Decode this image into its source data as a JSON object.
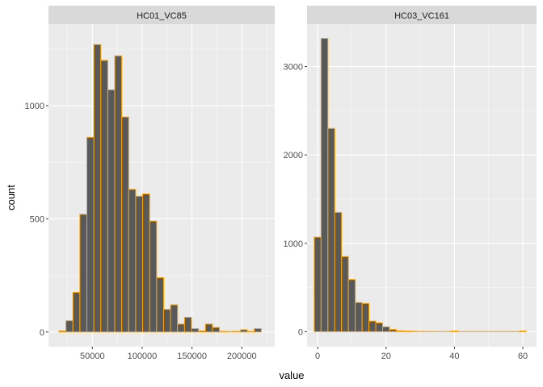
{
  "chart_data": {
    "type": "bar",
    "kind": "faceted histogram",
    "xlabel": "value",
    "ylabel": "count",
    "colors": {
      "panel_background": "#ebebeb",
      "grid_major": "#ffffff",
      "strip_background": "#d9d9d9",
      "bar_fill": "#595959",
      "bar_outline": "#ffa500"
    },
    "grid": true,
    "facets": [
      {
        "name": "HC01_VC85",
        "xlim": [
          6000,
          233000
        ],
        "ylim": [
          -65,
          1360
        ],
        "x_ticks": [
          50000,
          100000,
          150000,
          200000
        ],
        "x_tick_labels": [
          "50000",
          "100000",
          "150000",
          "200000"
        ],
        "y_ticks": [
          0,
          500,
          1000
        ],
        "y_tick_labels": [
          "0",
          "500",
          "1000"
        ],
        "bins": [
          {
            "x": 20000,
            "count": 5
          },
          {
            "x": 27000,
            "count": 50
          },
          {
            "x": 34000,
            "count": 175
          },
          {
            "x": 41000,
            "count": 520
          },
          {
            "x": 48000,
            "count": 860
          },
          {
            "x": 55000,
            "count": 1270
          },
          {
            "x": 62000,
            "count": 1200
          },
          {
            "x": 69000,
            "count": 1070
          },
          {
            "x": 76000,
            "count": 1220
          },
          {
            "x": 83000,
            "count": 950
          },
          {
            "x": 90000,
            "count": 630
          },
          {
            "x": 97000,
            "count": 600
          },
          {
            "x": 104000,
            "count": 610
          },
          {
            "x": 111000,
            "count": 490
          },
          {
            "x": 118000,
            "count": 240
          },
          {
            "x": 125000,
            "count": 100
          },
          {
            "x": 132000,
            "count": 120
          },
          {
            "x": 139000,
            "count": 35
          },
          {
            "x": 146000,
            "count": 65
          },
          {
            "x": 153000,
            "count": 15
          },
          {
            "x": 160000,
            "count": 5
          },
          {
            "x": 167000,
            "count": 35
          },
          {
            "x": 174000,
            "count": 20
          },
          {
            "x": 181000,
            "count": 3
          },
          {
            "x": 188000,
            "count": 2
          },
          {
            "x": 195000,
            "count": 3
          },
          {
            "x": 202000,
            "count": 10
          },
          {
            "x": 209000,
            "count": 3
          },
          {
            "x": 216000,
            "count": 15
          }
        ],
        "binwidth": 7000
      },
      {
        "name": "HC03_VC161",
        "xlim": [
          -3.1,
          64
        ],
        "ylim": [
          -170,
          3480
        ],
        "x_ticks": [
          0,
          20,
          40,
          60
        ],
        "x_tick_labels": [
          "0",
          "20",
          "40",
          "60"
        ],
        "y_ticks": [
          0,
          1000,
          2000,
          3000
        ],
        "y_tick_labels": [
          "0",
          "1000",
          "2000",
          "3000"
        ],
        "bins": [
          {
            "x": 0,
            "count": 1070
          },
          {
            "x": 2,
            "count": 3320
          },
          {
            "x": 4,
            "count": 2300
          },
          {
            "x": 6,
            "count": 1350
          },
          {
            "x": 8,
            "count": 850
          },
          {
            "x": 10,
            "count": 590
          },
          {
            "x": 12,
            "count": 330
          },
          {
            "x": 14,
            "count": 320
          },
          {
            "x": 16,
            "count": 120
          },
          {
            "x": 18,
            "count": 100
          },
          {
            "x": 20,
            "count": 55
          },
          {
            "x": 22,
            "count": 25
          },
          {
            "x": 24,
            "count": 10
          },
          {
            "x": 26,
            "count": 8
          },
          {
            "x": 28,
            "count": 5
          },
          {
            "x": 30,
            "count": 3
          },
          {
            "x": 32,
            "count": 2
          },
          {
            "x": 34,
            "count": 2
          },
          {
            "x": 36,
            "count": 1
          },
          {
            "x": 38,
            "count": 2
          },
          {
            "x": 40,
            "count": 8
          },
          {
            "x": 42,
            "count": 1
          },
          {
            "x": 44,
            "count": 1
          },
          {
            "x": 46,
            "count": 1
          },
          {
            "x": 48,
            "count": 1
          },
          {
            "x": 50,
            "count": 1
          },
          {
            "x": 52,
            "count": 1
          },
          {
            "x": 54,
            "count": 1
          },
          {
            "x": 56,
            "count": 1
          },
          {
            "x": 58,
            "count": 1
          },
          {
            "x": 60,
            "count": 8
          }
        ],
        "binwidth": 2
      }
    ]
  }
}
